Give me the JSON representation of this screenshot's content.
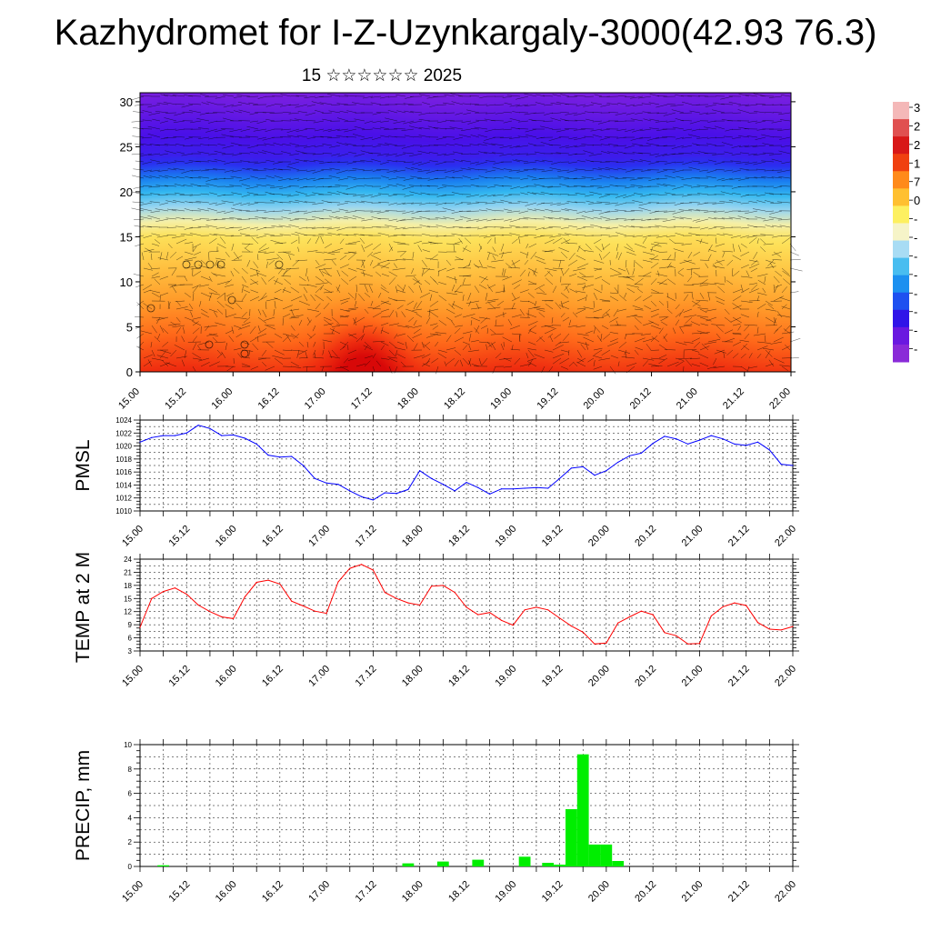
{
  "title": "Kazhydromet for I-Z-Uzynkargaly-3000(42.93 76.3)",
  "subtitle": "15 ☆☆☆☆☆☆ 2025",
  "time_labels": [
    "15.00",
    "15.12",
    "16.00",
    "16.12",
    "17.00",
    "17.12",
    "18.00",
    "18.12",
    "19.00",
    "19.12",
    "20.00",
    "20.12",
    "21.00",
    "21.12",
    "22.00"
  ],
  "colorbar_labels": [
    "3",
    "2",
    "2",
    "1",
    "7",
    "0",
    "-",
    "-",
    "-",
    "-",
    "-",
    "-",
    "-",
    "-"
  ],
  "chart_data": [
    {
      "id": "wind-temp-cross-section",
      "type": "heatmap",
      "title": "",
      "xlabel": "",
      "ylabel": "",
      "x_ticks": [
        "15.00",
        "15.12",
        "16.00",
        "16.12",
        "17.00",
        "17.12",
        "18.00",
        "18.12",
        "19.00",
        "19.12",
        "20.00",
        "20.12",
        "21.00",
        "21.12",
        "22.00"
      ],
      "y_ticks": [
        0,
        5,
        10,
        15,
        20,
        25,
        30
      ],
      "ylim": [
        0,
        31
      ],
      "colormap": [
        "#7a1fe0",
        "#4a10e8",
        "#2a30f0",
        "#1a7ef0",
        "#34b8f0",
        "#9ad6f0",
        "#f5f0a8",
        "#fde25a",
        "#ffc040",
        "#ff9b2a",
        "#ff6a1a",
        "#f03010",
        "#d80808"
      ],
      "colorbar_colors": [
        "#f4b8b8",
        "#e05050",
        "#d81818",
        "#f04010",
        "#ff8a1a",
        "#ffc030",
        "#fdf060",
        "#f6f4c8",
        "#a8dcf4",
        "#48bdf0",
        "#1c90f0",
        "#1e50f0",
        "#3014e8",
        "#6a18e0",
        "#8a2ad8"
      ],
      "grid": false
    },
    {
      "id": "pmsl",
      "type": "line",
      "title": "",
      "ylabel": "PMSL",
      "xlabel": "",
      "ylim": [
        1010,
        1024
      ],
      "y_ticks": [
        1010,
        1012,
        1014,
        1016,
        1018,
        1020,
        1022,
        1024
      ],
      "x_ticks": [
        "15.00",
        "15.12",
        "16.00",
        "16.12",
        "17.00",
        "17.12",
        "18.00",
        "18.12",
        "19.00",
        "19.12",
        "20.00",
        "20.12",
        "21.00",
        "21.12",
        "22.00"
      ],
      "grid": true,
      "series": [
        {
          "color": "#0000ff",
          "x": [
            0,
            3,
            6,
            9,
            12,
            15,
            18,
            21,
            24,
            27,
            30,
            33,
            36,
            39,
            42,
            45,
            48,
            51,
            54,
            57,
            60,
            63,
            66,
            69,
            72,
            75,
            78,
            81,
            84,
            87,
            90,
            93,
            96,
            99,
            102,
            105,
            108,
            111,
            114,
            117,
            120,
            123,
            126,
            129,
            132,
            135,
            138,
            141,
            144,
            147,
            150,
            153,
            156,
            159,
            162,
            165,
            168
          ],
          "values": [
            1020.6,
            1021.3,
            1021.6,
            1021.6,
            1022.0,
            1023.2,
            1022.7,
            1021.6,
            1021.7,
            1021.2,
            1020.3,
            1018.6,
            1018.3,
            1018.4,
            1017.0,
            1015.0,
            1014.3,
            1014.1,
            1013.1,
            1012.2,
            1011.7,
            1012.8,
            1012.7,
            1013.3,
            1016.2,
            1015.0,
            1014.1,
            1013.1,
            1014.4,
            1013.6,
            1012.6,
            1013.4,
            1013.4,
            1013.5,
            1013.6,
            1013.5,
            1015.0,
            1016.6,
            1016.8,
            1015.5,
            1016.2,
            1017.5,
            1018.5,
            1018.9,
            1020.4,
            1021.5,
            1021.1,
            1020.3,
            1020.9,
            1021.6,
            1021.1,
            1020.3,
            1020.1,
            1020.6,
            1019.4,
            1017.2,
            1017.0
          ]
        }
      ]
    },
    {
      "id": "temp-2m",
      "type": "line",
      "title": "",
      "ylabel": "TEMP at 2 M",
      "xlabel": "",
      "ylim": [
        3,
        24
      ],
      "y_ticks": [
        3,
        6,
        9,
        12,
        15,
        18,
        21,
        24
      ],
      "x_ticks": [
        "15.00",
        "15.12",
        "16.00",
        "16.12",
        "17.00",
        "17.12",
        "18.00",
        "18.12",
        "19.00",
        "19.12",
        "20.00",
        "20.12",
        "21.00",
        "21.12",
        "22.00"
      ],
      "grid": true,
      "series": [
        {
          "color": "#ff0000",
          "x": [
            0,
            3,
            6,
            9,
            12,
            15,
            18,
            21,
            24,
            27,
            30,
            33,
            36,
            39,
            42,
            45,
            48,
            51,
            54,
            57,
            60,
            63,
            66,
            69,
            72,
            75,
            78,
            81,
            84,
            87,
            90,
            93,
            96,
            99,
            102,
            105,
            108,
            111,
            114,
            117,
            120,
            123,
            126,
            129,
            132,
            135,
            138,
            141,
            144,
            147,
            150,
            153,
            156,
            159,
            162,
            165,
            168
          ],
          "values": [
            8.4,
            15.0,
            16.6,
            17.4,
            16.0,
            13.5,
            12.0,
            10.8,
            10.4,
            15.4,
            18.7,
            19.2,
            18.3,
            14.4,
            13.3,
            12.1,
            11.6,
            18.8,
            21.9,
            22.8,
            21.5,
            16.4,
            15.0,
            14.0,
            13.5,
            17.8,
            18.0,
            16.4,
            13.0,
            11.3,
            11.8,
            10.0,
            8.9,
            12.4,
            13.0,
            12.4,
            10.5,
            8.7,
            7.3,
            4.6,
            4.8,
            9.4,
            10.8,
            12.1,
            11.3,
            7.2,
            6.5,
            4.6,
            4.7,
            11.0,
            13.1,
            14.0,
            13.4,
            9.5,
            8.0,
            7.8,
            8.6
          ]
        }
      ]
    },
    {
      "id": "precip",
      "type": "bar",
      "title": "",
      "ylabel": "PRECIP, mm",
      "xlabel": "",
      "ylim": [
        0,
        10
      ],
      "y_ticks": [
        0,
        2,
        4,
        6,
        8,
        10
      ],
      "x_ticks": [
        "15.00",
        "15.12",
        "16.00",
        "16.12",
        "17.00",
        "17.12",
        "18.00",
        "18.12",
        "19.00",
        "19.12",
        "20.00",
        "20.12",
        "21.00",
        "21.12",
        "22.00"
      ],
      "grid": true,
      "color": "#00ee00",
      "bar_width_hours": 3,
      "series": [
        {
          "x": [
            6,
            69,
            78,
            87,
            99,
            105,
            108,
            111,
            114,
            117,
            120,
            123
          ],
          "values": [
            0.1,
            0.25,
            0.4,
            0.55,
            0.8,
            0.3,
            0.15,
            4.7,
            9.2,
            1.8,
            1.8,
            0.45
          ]
        }
      ]
    }
  ]
}
